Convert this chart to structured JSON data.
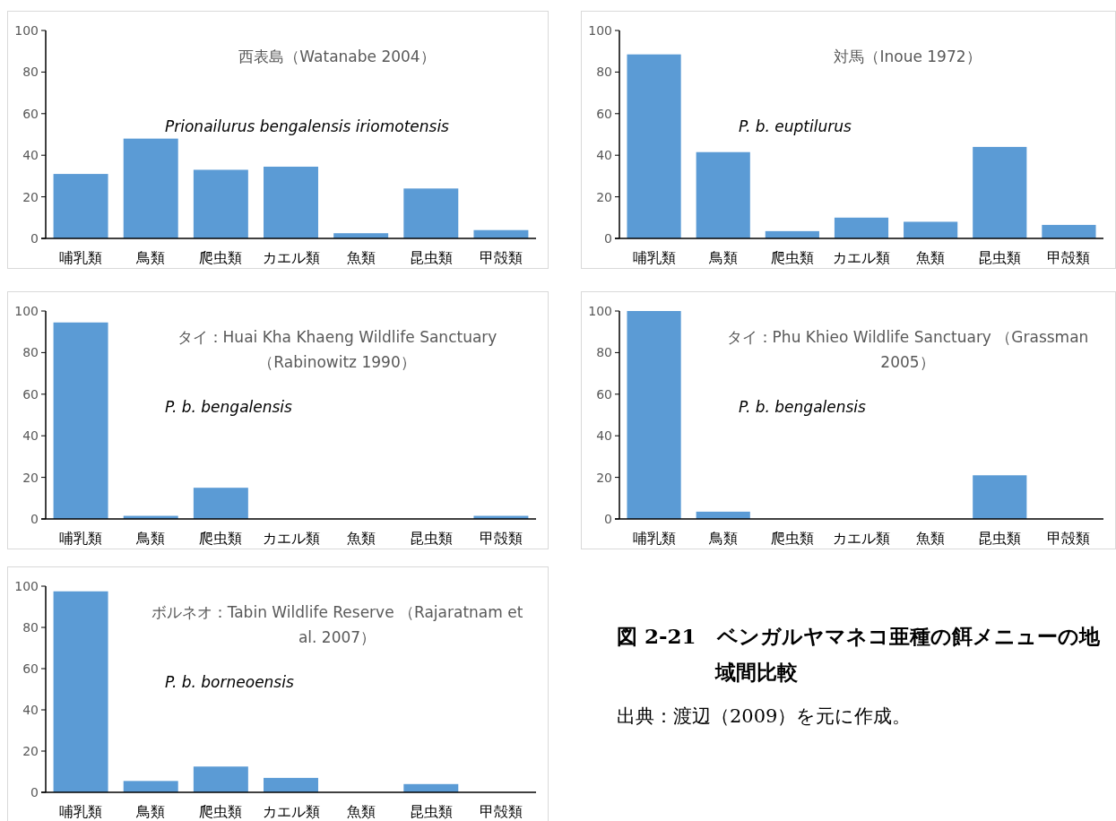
{
  "chart_data": [
    {
      "type": "bar",
      "title": "西表島（Watanabe 2004）",
      "subtitle": "Prionailurus bengalensis iriomotensis",
      "categories": [
        "哺乳類",
        "鳥類",
        "爬虫類",
        "カエル類",
        "魚類",
        "昆虫類",
        "甲殻類"
      ],
      "values": [
        31,
        48,
        33,
        34.5,
        2.5,
        24,
        4
      ],
      "color": "#5b9bd5",
      "ylim": [
        0,
        100
      ],
      "yticks": [
        0,
        20,
        40,
        60,
        80,
        100
      ]
    },
    {
      "type": "bar",
      "title": "対馬（Inoue 1972）",
      "subtitle": "P. b. euptilurus",
      "categories": [
        "哺乳類",
        "鳥類",
        "爬虫類",
        "カエル類",
        "魚類",
        "昆虫類",
        "甲殻類"
      ],
      "values": [
        88.5,
        41.5,
        3.5,
        10,
        8,
        44,
        6.5
      ],
      "color": "#5b9bd5",
      "ylim": [
        0,
        100
      ],
      "yticks": [
        0,
        20,
        40,
        60,
        80,
        100
      ]
    },
    {
      "type": "bar",
      "title": "タイ：Huai Kha Khaeng Wildlife Sanctuary （Rabinowitz 1990）",
      "subtitle": "P. b. bengalensis",
      "categories": [
        "哺乳類",
        "鳥類",
        "爬虫類",
        "カエル類",
        "魚類",
        "昆虫類",
        "甲殻類"
      ],
      "values": [
        94.5,
        1.5,
        15,
        0,
        0,
        0,
        1.5
      ],
      "color": "#5b9bd5",
      "ylim": [
        0,
        100
      ],
      "yticks": [
        0,
        20,
        40,
        60,
        80,
        100
      ]
    },
    {
      "type": "bar",
      "title": "タイ：Phu Khieo Wildlife Sanctuary （Grassman 2005）",
      "subtitle": "P. b. bengalensis",
      "categories": [
        "哺乳類",
        "鳥類",
        "爬虫類",
        "カエル類",
        "魚類",
        "昆虫類",
        "甲殻類"
      ],
      "values": [
        100,
        3.5,
        0,
        0,
        0,
        21,
        0
      ],
      "color": "#5b9bd5",
      "ylim": [
        0,
        100
      ],
      "yticks": [
        0,
        20,
        40,
        60,
        80,
        100
      ]
    },
    {
      "type": "bar",
      "title": "ボルネオ：Tabin Wildlife Reserve （Rajaratnam et al. 2007）",
      "subtitle": "P. b. borneoensis",
      "categories": [
        "哺乳類",
        "鳥類",
        "爬虫類",
        "カエル類",
        "魚類",
        "昆虫類",
        "甲殻類"
      ],
      "values": [
        97.5,
        5.5,
        12.5,
        7,
        0,
        4,
        0
      ],
      "color": "#5b9bd5",
      "ylim": [
        0,
        100
      ],
      "yticks": [
        0,
        20,
        40,
        60,
        80,
        100
      ]
    },
    {
      "type": "other",
      "title": "図 2-21　ベンガルヤマネコ亜種の餌メニューの地域間比較",
      "annotations": [
        "出典：渡辺（2009）を元に作成。"
      ]
    }
  ]
}
